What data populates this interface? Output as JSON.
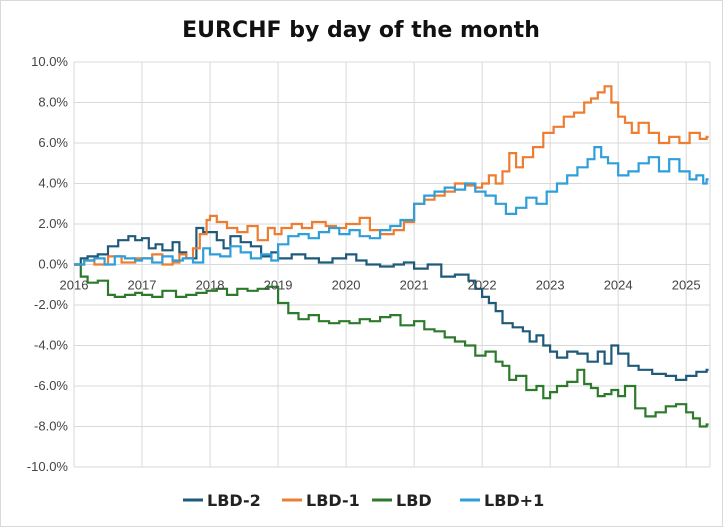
{
  "chart_data": {
    "type": "line",
    "title": "EURCHF by day of the month",
    "xlabel": "",
    "ylabel": "",
    "xlim": [
      2016.0,
      2025.35
    ],
    "ylim": [
      -10,
      10
    ],
    "grid": true,
    "legend_position": "bottom",
    "x_ticks": [
      2016,
      2017,
      2018,
      2019,
      2020,
      2021,
      2022,
      2023,
      2024,
      2025
    ],
    "x_tick_labels": [
      "2016",
      "2017",
      "2018",
      "2019",
      "2020",
      "2021",
      "2022",
      "2023",
      "2024",
      "2025"
    ],
    "y_ticks": [
      10,
      8,
      6,
      4,
      2,
      0,
      -2,
      -4,
      -6,
      -8,
      -10
    ],
    "y_tick_labels": [
      "10.0%",
      "8.0%",
      "6.0%",
      "4.0%",
      "2.0%",
      "0.0%",
      "-2.0%",
      "-4.0%",
      "-6.0%",
      "-8.0%",
      "-10.0%"
    ],
    "series": [
      {
        "name": "LBD-2",
        "color": "#1f5a7a",
        "x": [
          2016.0,
          2016.1,
          2016.2,
          2016.35,
          2016.5,
          2016.65,
          2016.8,
          2016.9,
          2017.0,
          2017.1,
          2017.2,
          2017.3,
          2017.45,
          2017.55,
          2017.65,
          2017.8,
          2017.9,
          2018.0,
          2018.1,
          2018.2,
          2018.3,
          2018.45,
          2018.6,
          2018.75,
          2018.9,
          2019.0,
          2019.2,
          2019.4,
          2019.6,
          2019.8,
          2020.0,
          2020.15,
          2020.3,
          2020.5,
          2020.7,
          2020.85,
          2021.0,
          2021.2,
          2021.4,
          2021.6,
          2021.8,
          2021.9,
          2022.0,
          2022.1,
          2022.2,
          2022.3,
          2022.45,
          2022.6,
          2022.7,
          2022.8,
          2022.9,
          2023.0,
          2023.1,
          2023.25,
          2023.4,
          2023.55,
          2023.7,
          2023.8,
          2023.9,
          2024.0,
          2024.15,
          2024.3,
          2024.5,
          2024.7,
          2024.85,
          2025.0,
          2025.15,
          2025.3
        ],
        "values": [
          0.0,
          0.3,
          0.4,
          0.5,
          0.9,
          1.2,
          1.4,
          1.2,
          1.3,
          0.8,
          1.0,
          0.7,
          1.1,
          0.6,
          0.3,
          1.8,
          1.6,
          1.6,
          1.2,
          0.8,
          1.4,
          1.1,
          0.9,
          0.4,
          0.6,
          0.3,
          0.5,
          0.3,
          0.1,
          0.3,
          0.5,
          0.2,
          0.0,
          -0.1,
          0.0,
          0.1,
          -0.2,
          0.0,
          -0.6,
          -0.5,
          -0.8,
          -1.2,
          -1.6,
          -1.9,
          -2.3,
          -2.9,
          -3.1,
          -3.3,
          -3.8,
          -3.5,
          -4.0,
          -4.3,
          -4.6,
          -4.3,
          -4.4,
          -4.8,
          -4.3,
          -4.9,
          -4.0,
          -4.4,
          -5.0,
          -5.2,
          -5.4,
          -5.5,
          -5.7,
          -5.5,
          -5.3,
          -5.2
        ]
      },
      {
        "name": "LBD-1",
        "color": "#ed7d31",
        "x": [
          2016.0,
          2016.15,
          2016.3,
          2016.5,
          2016.7,
          2016.9,
          2017.0,
          2017.15,
          2017.3,
          2017.45,
          2017.55,
          2017.65,
          2017.75,
          2017.85,
          2017.95,
          2018.0,
          2018.1,
          2018.25,
          2018.4,
          2018.55,
          2018.7,
          2018.85,
          2018.95,
          2019.05,
          2019.2,
          2019.35,
          2019.5,
          2019.7,
          2019.85,
          2020.0,
          2020.2,
          2020.35,
          2020.5,
          2020.7,
          2020.85,
          2021.0,
          2021.15,
          2021.3,
          2021.45,
          2021.6,
          2021.75,
          2021.9,
          2022.0,
          2022.1,
          2022.2,
          2022.3,
          2022.4,
          2022.5,
          2022.6,
          2022.75,
          2022.9,
          2023.05,
          2023.2,
          2023.35,
          2023.5,
          2023.6,
          2023.7,
          2023.8,
          2023.9,
          2024.0,
          2024.1,
          2024.2,
          2024.3,
          2024.45,
          2024.6,
          2024.75,
          2024.9,
          2025.05,
          2025.2,
          2025.3
        ],
        "values": [
          0.0,
          0.2,
          0.0,
          0.4,
          0.1,
          0.3,
          0.3,
          0.5,
          0.0,
          0.1,
          0.5,
          0.3,
          0.8,
          1.5,
          2.2,
          2.4,
          2.1,
          1.8,
          1.6,
          1.9,
          1.2,
          1.8,
          1.5,
          1.8,
          2.0,
          1.8,
          2.1,
          1.9,
          1.8,
          2.0,
          2.3,
          1.7,
          1.5,
          1.7,
          2.1,
          3.0,
          3.2,
          3.4,
          3.6,
          4.0,
          3.9,
          3.8,
          4.0,
          4.4,
          4.0,
          4.6,
          5.5,
          4.8,
          5.3,
          5.8,
          6.5,
          6.8,
          7.3,
          7.5,
          8.0,
          8.2,
          8.5,
          8.8,
          8.0,
          7.3,
          7.0,
          6.5,
          7.0,
          6.5,
          6.0,
          6.3,
          6.0,
          6.5,
          6.2,
          6.3
        ]
      },
      {
        "name": "LBD",
        "color": "#2d7a2d",
        "x": [
          2016.0,
          2016.1,
          2016.2,
          2016.35,
          2016.5,
          2016.6,
          2016.75,
          2016.9,
          2017.0,
          2017.15,
          2017.3,
          2017.5,
          2017.65,
          2017.8,
          2017.95,
          2018.1,
          2018.25,
          2018.4,
          2018.55,
          2018.7,
          2018.85,
          2019.0,
          2019.15,
          2019.3,
          2019.45,
          2019.6,
          2019.75,
          2019.9,
          2020.05,
          2020.2,
          2020.35,
          2020.5,
          2020.65,
          2020.8,
          2021.0,
          2021.15,
          2021.3,
          2021.45,
          2021.6,
          2021.75,
          2021.9,
          2022.05,
          2022.2,
          2022.3,
          2022.4,
          2022.5,
          2022.65,
          2022.8,
          2022.9,
          2023.0,
          2023.1,
          2023.25,
          2023.4,
          2023.5,
          2023.6,
          2023.7,
          2023.8,
          2023.9,
          2024.0,
          2024.1,
          2024.25,
          2024.4,
          2024.55,
          2024.7,
          2024.85,
          2025.0,
          2025.1,
          2025.2,
          2025.3
        ],
        "values": [
          0.0,
          -0.6,
          -0.9,
          -0.8,
          -1.5,
          -1.6,
          -1.5,
          -1.4,
          -1.5,
          -1.6,
          -1.3,
          -1.6,
          -1.5,
          -1.4,
          -1.3,
          -1.2,
          -1.5,
          -1.2,
          -1.3,
          -1.2,
          -1.1,
          -1.9,
          -2.4,
          -2.7,
          -2.5,
          -2.8,
          -2.9,
          -2.8,
          -2.9,
          -2.7,
          -2.8,
          -2.6,
          -2.5,
          -3.0,
          -2.8,
          -3.2,
          -3.3,
          -3.6,
          -3.8,
          -4.0,
          -4.5,
          -4.3,
          -4.8,
          -5.0,
          -5.7,
          -5.5,
          -6.2,
          -6.0,
          -6.6,
          -6.3,
          -6.0,
          -5.8,
          -5.2,
          -5.9,
          -6.1,
          -6.5,
          -6.4,
          -6.2,
          -6.5,
          -6.0,
          -7.1,
          -7.5,
          -7.3,
          -7.0,
          -6.9,
          -7.3,
          -7.6,
          -8.0,
          -7.9
        ]
      },
      {
        "name": "LBD+1",
        "color": "#2e9fd8",
        "x": [
          2016.0,
          2016.15,
          2016.3,
          2016.45,
          2016.6,
          2016.75,
          2016.9,
          2017.0,
          2017.15,
          2017.3,
          2017.45,
          2017.6,
          2017.75,
          2017.9,
          2018.0,
          2018.15,
          2018.3,
          2018.45,
          2018.6,
          2018.75,
          2018.9,
          2019.0,
          2019.15,
          2019.3,
          2019.45,
          2019.6,
          2019.75,
          2019.9,
          2020.05,
          2020.2,
          2020.35,
          2020.5,
          2020.65,
          2020.8,
          2021.0,
          2021.15,
          2021.3,
          2021.45,
          2021.6,
          2021.75,
          2021.9,
          2022.05,
          2022.2,
          2022.35,
          2022.5,
          2022.65,
          2022.8,
          2022.95,
          2023.1,
          2023.25,
          2023.4,
          2023.55,
          2023.65,
          2023.75,
          2023.85,
          2024.0,
          2024.15,
          2024.3,
          2024.45,
          2024.6,
          2024.75,
          2024.9,
          2025.05,
          2025.15,
          2025.25,
          2025.3
        ],
        "values": [
          0.0,
          0.2,
          0.3,
          0.0,
          0.4,
          0.3,
          0.2,
          0.3,
          0.1,
          0.4,
          0.2,
          0.3,
          0.1,
          0.8,
          0.5,
          0.4,
          0.9,
          0.6,
          0.3,
          0.5,
          0.2,
          1.0,
          1.4,
          1.5,
          1.3,
          1.6,
          1.8,
          1.5,
          1.7,
          1.4,
          1.3,
          1.7,
          1.9,
          2.2,
          3.0,
          3.4,
          3.6,
          3.8,
          3.7,
          4.0,
          3.6,
          3.4,
          3.0,
          2.5,
          2.8,
          3.3,
          3.0,
          3.6,
          4.0,
          4.4,
          4.8,
          5.2,
          5.8,
          5.3,
          5.0,
          4.4,
          4.6,
          5.0,
          5.3,
          4.6,
          5.2,
          4.6,
          4.2,
          4.4,
          4.0,
          4.2
        ]
      }
    ]
  }
}
